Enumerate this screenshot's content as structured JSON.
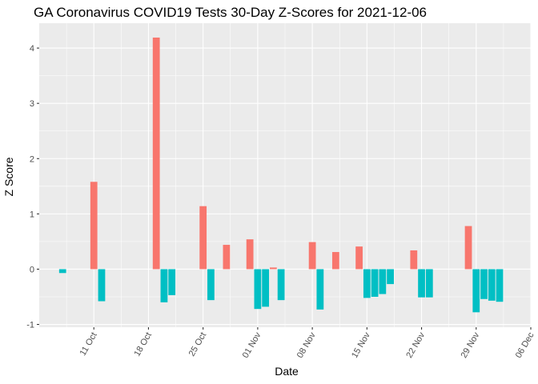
{
  "chart_data": {
    "type": "bar",
    "title": "GA Coronavirus COVID19 Tests 30-Day Z-Scores for 2021-12-06",
    "xlabel": "Date",
    "ylabel": "Z Score",
    "ylim": [
      -1.05,
      4.45
    ],
    "yticks": [
      -1,
      0,
      1,
      2,
      3,
      4
    ],
    "x_range": [
      "2021-10-04",
      "2021-12-06"
    ],
    "xticks": [
      {
        "date": "2021-10-11",
        "label": "11 Oct"
      },
      {
        "date": "2021-10-18",
        "label": "18 Oct"
      },
      {
        "date": "2021-10-25",
        "label": "25 Oct"
      },
      {
        "date": "2021-11-01",
        "label": "01 Nov"
      },
      {
        "date": "2021-11-08",
        "label": "08 Nov"
      },
      {
        "date": "2021-11-15",
        "label": "15 Nov"
      },
      {
        "date": "2021-11-22",
        "label": "22 Nov"
      },
      {
        "date": "2021-11-29",
        "label": "29 Nov"
      },
      {
        "date": "2021-12-06",
        "label": "06 Dec"
      }
    ],
    "colors": {
      "positive": "#F8766D",
      "negative": "#00BFC4",
      "panel": "#EBEBEB"
    },
    "grid": true,
    "legend": "none",
    "bars": [
      {
        "date": "2021-10-07",
        "value": -0.07
      },
      {
        "date": "2021-10-11",
        "value": 1.58
      },
      {
        "date": "2021-10-12",
        "value": -0.58
      },
      {
        "date": "2021-10-19",
        "value": 4.19
      },
      {
        "date": "2021-10-20",
        "value": -0.6
      },
      {
        "date": "2021-10-21",
        "value": -0.47
      },
      {
        "date": "2021-10-25",
        "value": 1.14
      },
      {
        "date": "2021-10-26",
        "value": -0.56
      },
      {
        "date": "2021-10-28",
        "value": 0.44
      },
      {
        "date": "2021-10-31",
        "value": 0.54
      },
      {
        "date": "2021-11-01",
        "value": -0.72
      },
      {
        "date": "2021-11-02",
        "value": -0.68
      },
      {
        "date": "2021-11-03",
        "value": 0.03
      },
      {
        "date": "2021-11-04",
        "value": -0.56
      },
      {
        "date": "2021-11-08",
        "value": 0.49
      },
      {
        "date": "2021-11-09",
        "value": -0.73
      },
      {
        "date": "2021-11-11",
        "value": 0.31
      },
      {
        "date": "2021-11-14",
        "value": 0.41
      },
      {
        "date": "2021-11-15",
        "value": -0.52
      },
      {
        "date": "2021-11-16",
        "value": -0.5
      },
      {
        "date": "2021-11-17",
        "value": -0.45
      },
      {
        "date": "2021-11-18",
        "value": -0.27
      },
      {
        "date": "2021-11-21",
        "value": 0.34
      },
      {
        "date": "2021-11-22",
        "value": -0.51
      },
      {
        "date": "2021-11-23",
        "value": -0.51
      },
      {
        "date": "2021-11-28",
        "value": 0.78
      },
      {
        "date": "2021-11-29",
        "value": -0.78
      },
      {
        "date": "2021-11-30",
        "value": -0.54
      },
      {
        "date": "2021-12-01",
        "value": -0.57
      },
      {
        "date": "2021-12-02",
        "value": -0.59
      }
    ]
  }
}
